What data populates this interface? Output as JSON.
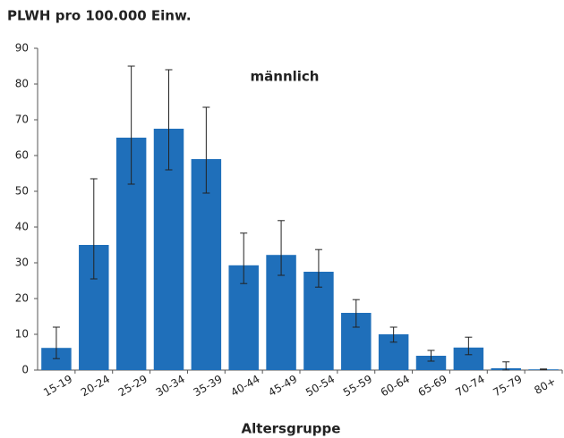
{
  "chart_data": {
    "type": "bar",
    "title": "PLWH pro 100.000 Einw.",
    "annotation": "männlich",
    "x_label": "Altersgruppe",
    "categories": [
      "15-19",
      "20-24",
      "25-29",
      "30-34",
      "35-39",
      "40-44",
      "45-49",
      "50-54",
      "55-59",
      "60-64",
      "65-69",
      "70-74",
      "75-79",
      "80+"
    ],
    "values": [
      6.2,
      35,
      65,
      67.5,
      59,
      29.3,
      32.2,
      27.5,
      16,
      10,
      4,
      6.3,
      0.5,
      0.2
    ],
    "error_low": [
      3.2,
      25.5,
      52,
      56,
      49.5,
      24.2,
      26.5,
      23.2,
      12,
      7.8,
      2.5,
      4.3,
      0,
      0.1
    ],
    "error_high": [
      12,
      53.5,
      85,
      84,
      73.5,
      38.3,
      41.8,
      33.7,
      19.7,
      12,
      5.5,
      9.2,
      2.3,
      0.3
    ],
    "color": "#1f6fba",
    "ylim": [
      0,
      90
    ],
    "yticks": [
      0,
      10,
      20,
      30,
      40,
      50,
      60,
      70,
      80,
      90
    ],
    "grid": false
  }
}
